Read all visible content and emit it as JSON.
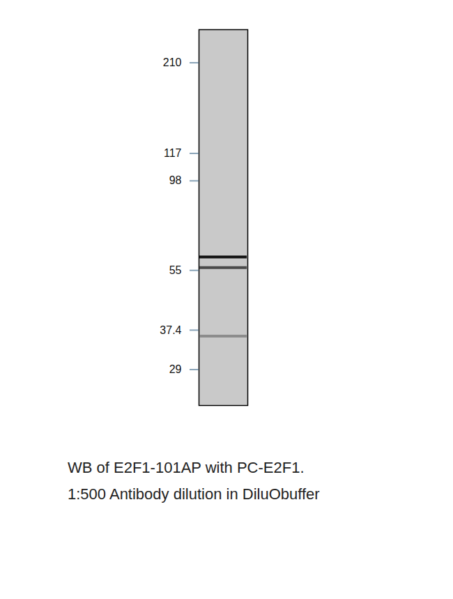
{
  "chart_data": {
    "type": "blot",
    "caption": [
      "WB of E2F1-101AP with PC-E2F1.",
      "1:500 Antibody dilution in DiluObuffer"
    ],
    "values": [
      60,
      56,
      36
    ],
    "colors": [
      "#111111",
      "#4a4a4a",
      "#8c8c8c"
    ],
    "log": "y",
    "ylim": [
      23,
      260
    ],
    "yticks": [
      210,
      117,
      98,
      55,
      37.4,
      29
    ],
    "tick_labels": "y"
  }
}
